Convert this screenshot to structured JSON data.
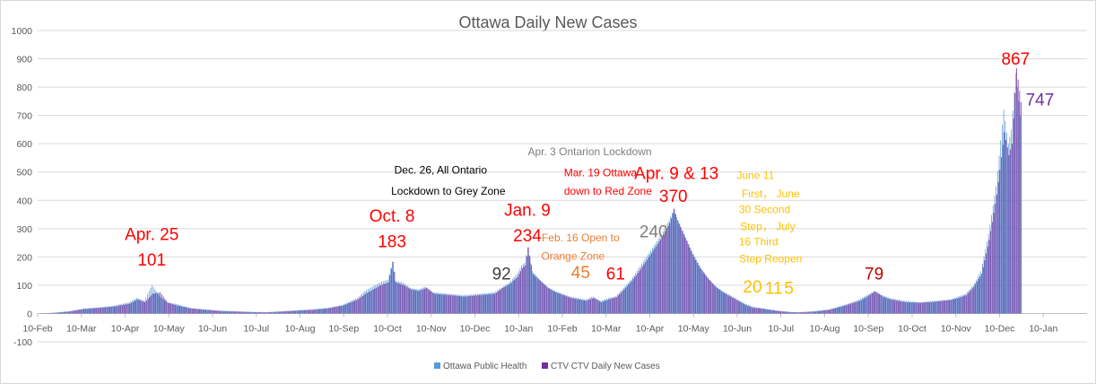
{
  "chart_data": {
    "type": "bar",
    "title": "Ottawa Daily New Cases",
    "xlabel": "",
    "ylabel": "",
    "ylim": [
      -100,
      1000
    ],
    "yticks": [
      -100,
      0,
      100,
      200,
      300,
      400,
      500,
      600,
      700,
      800,
      900,
      1000
    ],
    "x_tick_labels": [
      "10-Feb",
      "10-Mar",
      "10-Apr",
      "10-May",
      "10-Jun",
      "10-Jul",
      "10-Aug",
      "10-Sep",
      "10-Oct",
      "10-Nov",
      "10-Dec",
      "10-Jan",
      "10-Feb",
      "10-Mar",
      "10-Apr",
      "10-May",
      "10-Jun",
      "10-Jul",
      "10-Aug",
      "10-Sep",
      "10-Oct",
      "10-Nov",
      "10-Dec",
      "10-Jan"
    ],
    "gridlines": true,
    "legend_position": "bottom",
    "series": [
      {
        "name": "Ottawa Public Health",
        "color": "#5B9BD5",
        "points": [
          [
            0,
            0
          ],
          [
            10,
            3
          ],
          [
            20,
            8
          ],
          [
            30,
            18
          ],
          [
            40,
            22
          ],
          [
            50,
            28
          ],
          [
            60,
            40
          ],
          [
            65,
            55
          ],
          [
            70,
            45
          ],
          [
            75,
            101
          ],
          [
            80,
            60
          ],
          [
            85,
            40
          ],
          [
            90,
            35
          ],
          [
            100,
            20
          ],
          [
            110,
            15
          ],
          [
            120,
            10
          ],
          [
            130,
            8
          ],
          [
            140,
            6
          ],
          [
            150,
            5
          ],
          [
            160,
            8
          ],
          [
            170,
            12
          ],
          [
            180,
            15
          ],
          [
            190,
            20
          ],
          [
            200,
            30
          ],
          [
            210,
            55
          ],
          [
            215,
            80
          ],
          [
            220,
            95
          ],
          [
            225,
            110
          ],
          [
            230,
            120
          ],
          [
            233,
            183
          ],
          [
            235,
            115
          ],
          [
            240,
            110
          ],
          [
            245,
            90
          ],
          [
            250,
            85
          ],
          [
            255,
            95
          ],
          [
            260,
            75
          ],
          [
            270,
            70
          ],
          [
            280,
            65
          ],
          [
            290,
            70
          ],
          [
            300,
            75
          ],
          [
            305,
            92
          ],
          [
            310,
            110
          ],
          [
            315,
            140
          ],
          [
            318,
            170
          ],
          [
            320,
            180
          ],
          [
            322,
            234
          ],
          [
            325,
            150
          ],
          [
            330,
            120
          ],
          [
            335,
            95
          ],
          [
            340,
            80
          ],
          [
            345,
            70
          ],
          [
            350,
            60
          ],
          [
            355,
            55
          ],
          [
            360,
            50
          ],
          [
            365,
            60
          ],
          [
            370,
            45
          ],
          [
            375,
            55
          ],
          [
            380,
            61
          ],
          [
            385,
            90
          ],
          [
            390,
            120
          ],
          [
            395,
            160
          ],
          [
            400,
            200
          ],
          [
            405,
            240
          ],
          [
            410,
            280
          ],
          [
            415,
            330
          ],
          [
            418,
            370
          ],
          [
            420,
            340
          ],
          [
            425,
            280
          ],
          [
            430,
            220
          ],
          [
            435,
            170
          ],
          [
            440,
            130
          ],
          [
            445,
            100
          ],
          [
            450,
            80
          ],
          [
            455,
            65
          ],
          [
            460,
            50
          ],
          [
            465,
            35
          ],
          [
            470,
            25
          ],
          [
            475,
            20
          ],
          [
            480,
            15
          ],
          [
            485,
            11
          ],
          [
            490,
            8
          ],
          [
            495,
            5
          ],
          [
            500,
            5
          ],
          [
            510,
            8
          ],
          [
            520,
            15
          ],
          [
            530,
            30
          ],
          [
            540,
            50
          ],
          [
            545,
            65
          ],
          [
            550,
            79
          ],
          [
            555,
            65
          ],
          [
            560,
            55
          ],
          [
            565,
            50
          ],
          [
            570,
            45
          ],
          [
            580,
            40
          ],
          [
            590,
            45
          ],
          [
            600,
            50
          ],
          [
            605,
            60
          ],
          [
            610,
            70
          ],
          [
            615,
            100
          ],
          [
            620,
            150
          ],
          [
            625,
            280
          ],
          [
            630,
            450
          ],
          [
            635,
            720
          ],
          [
            638,
            600
          ],
          [
            640,
            650
          ],
          [
            643,
            850
          ],
          [
            646,
            700
          ]
        ]
      },
      {
        "name": "CTV CTV Daily New Cases",
        "color": "#7030A0",
        "points": [
          [
            0,
            0
          ],
          [
            10,
            2
          ],
          [
            20,
            7
          ],
          [
            30,
            16
          ],
          [
            40,
            20
          ],
          [
            50,
            25
          ],
          [
            60,
            35
          ],
          [
            65,
            50
          ],
          [
            70,
            40
          ],
          [
            75,
            70
          ],
          [
            80,
            75
          ],
          [
            85,
            38
          ],
          [
            90,
            30
          ],
          [
            100,
            18
          ],
          [
            110,
            13
          ],
          [
            120,
            9
          ],
          [
            130,
            7
          ],
          [
            140,
            5
          ],
          [
            150,
            4
          ],
          [
            160,
            7
          ],
          [
            170,
            10
          ],
          [
            180,
            13
          ],
          [
            190,
            18
          ],
          [
            200,
            28
          ],
          [
            210,
            50
          ],
          [
            215,
            70
          ],
          [
            220,
            85
          ],
          [
            225,
            100
          ],
          [
            230,
            110
          ],
          [
            233,
            183
          ],
          [
            235,
            110
          ],
          [
            240,
            100
          ],
          [
            245,
            85
          ],
          [
            250,
            80
          ],
          [
            255,
            90
          ],
          [
            260,
            70
          ],
          [
            270,
            65
          ],
          [
            280,
            60
          ],
          [
            290,
            65
          ],
          [
            300,
            70
          ],
          [
            305,
            90
          ],
          [
            310,
            105
          ],
          [
            315,
            130
          ],
          [
            318,
            160
          ],
          [
            320,
            170
          ],
          [
            322,
            234
          ],
          [
            325,
            140
          ],
          [
            330,
            115
          ],
          [
            335,
            90
          ],
          [
            340,
            75
          ],
          [
            345,
            65
          ],
          [
            350,
            55
          ],
          [
            355,
            50
          ],
          [
            360,
            45
          ],
          [
            365,
            55
          ],
          [
            370,
            40
          ],
          [
            375,
            50
          ],
          [
            380,
            58
          ],
          [
            385,
            85
          ],
          [
            390,
            115
          ],
          [
            395,
            150
          ],
          [
            400,
            190
          ],
          [
            405,
            230
          ],
          [
            410,
            270
          ],
          [
            415,
            320
          ],
          [
            418,
            370
          ],
          [
            420,
            330
          ],
          [
            425,
            270
          ],
          [
            430,
            210
          ],
          [
            435,
            160
          ],
          [
            440,
            125
          ],
          [
            445,
            95
          ],
          [
            450,
            75
          ],
          [
            455,
            60
          ],
          [
            460,
            45
          ],
          [
            465,
            30
          ],
          [
            470,
            20
          ],
          [
            475,
            18
          ],
          [
            480,
            14
          ],
          [
            485,
            10
          ],
          [
            490,
            7
          ],
          [
            495,
            5
          ],
          [
            500,
            4
          ],
          [
            510,
            7
          ],
          [
            520,
            13
          ],
          [
            530,
            28
          ],
          [
            540,
            45
          ],
          [
            545,
            60
          ],
          [
            550,
            79
          ],
          [
            555,
            60
          ],
          [
            560,
            50
          ],
          [
            565,
            45
          ],
          [
            570,
            40
          ],
          [
            580,
            38
          ],
          [
            590,
            42
          ],
          [
            600,
            48
          ],
          [
            605,
            55
          ],
          [
            610,
            65
          ],
          [
            615,
            95
          ],
          [
            620,
            140
          ],
          [
            625,
            260
          ],
          [
            630,
            420
          ],
          [
            635,
            640
          ],
          [
            638,
            560
          ],
          [
            640,
            600
          ],
          [
            643,
            867
          ],
          [
            646,
            747
          ]
        ]
      }
    ],
    "annotations": [
      {
        "text": "Apr. 25",
        "color": "#FF0000",
        "size": 19,
        "x": 75,
        "y": 260
      },
      {
        "text": "101",
        "color": "#FF0000",
        "size": 19,
        "x": 75,
        "y": 170
      },
      {
        "text": "Oct. 8",
        "color": "#FF0000",
        "size": 19,
        "x": 233,
        "y": 325
      },
      {
        "text": "183",
        "color": "#FF0000",
        "size": 19,
        "x": 233,
        "y": 235
      },
      {
        "text": "Dec. 26, All Ontario",
        "color": "#000000",
        "size": 12,
        "x": 265,
        "y": 495
      },
      {
        "text": "Lockdown to Grey Zone",
        "color": "#000000",
        "size": 12,
        "x": 270,
        "y": 420
      },
      {
        "text": "92",
        "color": "#404040",
        "size": 19,
        "x": 305,
        "y": 120
      },
      {
        "text": "Jan. 9",
        "color": "#FF0000",
        "size": 19,
        "x": 322,
        "y": 345
      },
      {
        "text": "234",
        "color": "#FF0000",
        "size": 19,
        "x": 322,
        "y": 255
      },
      {
        "text": "Apr. 3 Ontarion Lockdown",
        "color": "#7F7F7F",
        "size": 12,
        "x": 363,
        "y": 560
      },
      {
        "text": "Mar. 19 Ottawa",
        "color": "#FF0000",
        "size": 12,
        "x": 370,
        "y": 485
      },
      {
        "text": "down to Red Zone",
        "color": "#FF0000",
        "size": 12,
        "x": 375,
        "y": 420
      },
      {
        "text": "Feb. 16 Open to",
        "color": "#ED7D31",
        "size": 12,
        "x": 357,
        "y": 255
      },
      {
        "text": "Orange Zone",
        "color": "#ED7D31",
        "size": 12,
        "x": 352,
        "y": 190
      },
      {
        "text": "45",
        "color": "#ED7D31",
        "size": 19,
        "x": 357,
        "y": 125
      },
      {
        "text": "61",
        "color": "#FF0000",
        "size": 19,
        "x": 380,
        "y": 120
      },
      {
        "text": "240",
        "color": "#7F7F7F",
        "size": 19,
        "x": 405,
        "y": 270
      },
      {
        "text": "Apr. 9 & 13",
        "color": "#FF0000",
        "size": 19,
        "x": 420,
        "y": 475
      },
      {
        "text": "370",
        "color": "#FF0000",
        "size": 19,
        "x": 418,
        "y": 395
      },
      {
        "text": "June 11",
        "color": "#FFC000",
        "size": 12,
        "x": 472,
        "y": 475
      },
      {
        "text": "First， June",
        "color": "#FFC000",
        "size": 12,
        "x": 482,
        "y": 410
      },
      {
        "text": "30 Second",
        "color": "#FFC000",
        "size": 12,
        "x": 478,
        "y": 355
      },
      {
        "text": "Step， July",
        "color": "#FFC000",
        "size": 12,
        "x": 480,
        "y": 295
      },
      {
        "text": "16 Third",
        "color": "#FFC000",
        "size": 12,
        "x": 474,
        "y": 240
      },
      {
        "text": "Step Reopen",
        "color": "#FFC000",
        "size": 12,
        "x": 482,
        "y": 180
      },
      {
        "text": "20",
        "color": "#FFC000",
        "size": 19,
        "x": 470,
        "y": 75
      },
      {
        "text": "11",
        "color": "#FFC000",
        "size": 19,
        "x": 484,
        "y": 70
      },
      {
        "text": "5",
        "color": "#FFC000",
        "size": 19,
        "x": 494,
        "y": 70
      },
      {
        "text": "79",
        "color": "#C00000",
        "size": 19,
        "x": 550,
        "y": 120
      },
      {
        "text": "867",
        "color": "#FF0000",
        "size": 19,
        "x": 643,
        "y": 880
      },
      {
        "text": "747",
        "color": "#7030A0",
        "size": 19,
        "x": 659,
        "y": 735
      }
    ]
  }
}
